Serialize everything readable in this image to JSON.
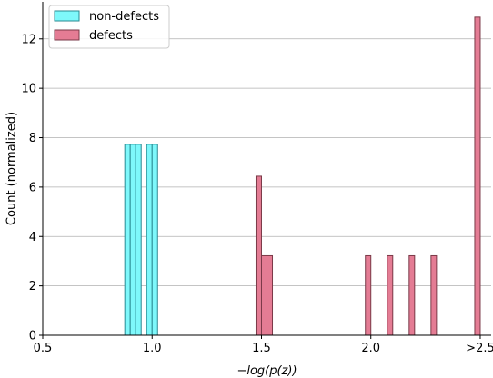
{
  "chart_data": {
    "type": "bar",
    "xlabel": "−log(p(z))",
    "ylabel": "Count (normalized)",
    "xlim": [
      0.5,
      2.55
    ],
    "ylim": [
      0,
      13.5
    ],
    "x_ticks": [
      {
        "value": 0.5,
        "label": "0.5"
      },
      {
        "value": 1.0,
        "label": "1.0"
      },
      {
        "value": 1.5,
        "label": "1.5"
      },
      {
        "value": 2.0,
        "label": "2.0"
      },
      {
        "value": 2.5,
        "label": ">2.5"
      }
    ],
    "y_ticks": [
      0,
      2,
      4,
      6,
      8,
      10,
      12
    ],
    "grid": "horizontal",
    "legend_position": "top-left",
    "bin_width": 0.025,
    "series": [
      {
        "name": "non-defects",
        "color": "#7ef8fb",
        "edge_color": "#2a8a92",
        "bins": [
          {
            "x": 0.875,
            "value": 7.73
          },
          {
            "x": 0.9,
            "value": 7.73
          },
          {
            "x": 0.925,
            "value": 7.73
          },
          {
            "x": 0.975,
            "value": 7.73
          },
          {
            "x": 1.0,
            "value": 7.73
          }
        ]
      },
      {
        "name": "defects",
        "color": "#e47c94",
        "edge_color": "#7a3a48",
        "bins": [
          {
            "x": 1.475,
            "value": 6.44
          },
          {
            "x": 1.5,
            "value": 3.22
          },
          {
            "x": 1.525,
            "value": 3.22
          },
          {
            "x": 1.975,
            "value": 3.22
          },
          {
            "x": 2.075,
            "value": 3.22
          },
          {
            "x": 2.175,
            "value": 3.22
          },
          {
            "x": 2.275,
            "value": 3.22
          },
          {
            "x": 2.475,
            "value": 12.88
          }
        ]
      }
    ]
  }
}
